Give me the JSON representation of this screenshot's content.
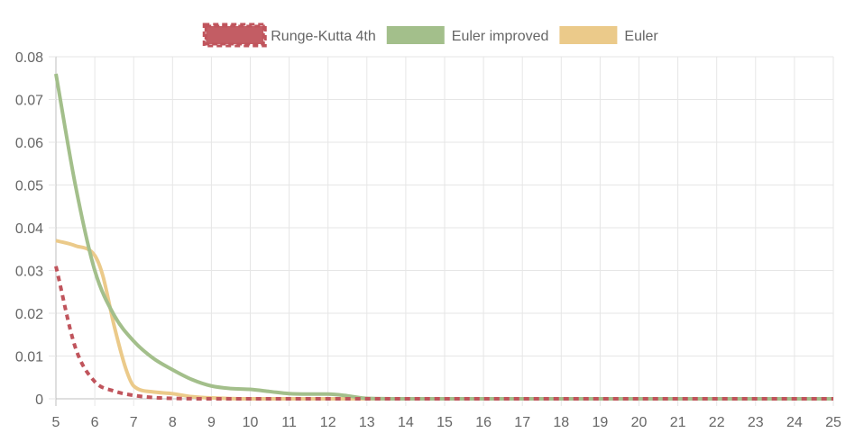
{
  "chart_data": {
    "type": "line",
    "title": "",
    "xlabel": "",
    "ylabel": "",
    "x": [
      5,
      6,
      7,
      8,
      9,
      10,
      11,
      12,
      13,
      14,
      15,
      16,
      17,
      18,
      19,
      20,
      21,
      22,
      23,
      24,
      25
    ],
    "xlim": [
      5,
      25
    ],
    "ylim": [
      0,
      0.08
    ],
    "y_ticks": [
      "0",
      "0.01",
      "0.02",
      "0.03",
      "0.04",
      "0.05",
      "0.06",
      "0.07",
      "0.08"
    ],
    "x_ticks": [
      "5",
      "6",
      "7",
      "8",
      "9",
      "10",
      "11",
      "12",
      "13",
      "14",
      "15",
      "16",
      "17",
      "18",
      "19",
      "20",
      "21",
      "22",
      "23",
      "24",
      "25"
    ],
    "grid": true,
    "legend_position": "top-center",
    "series": [
      {
        "name": "Runge-Kutta 4th",
        "color": "#c0545c",
        "style": "dashed",
        "points": [
          [
            5,
            0.031
          ],
          [
            5.5,
            0.012
          ],
          [
            6,
            0.004
          ],
          [
            6.5,
            0.0018
          ],
          [
            7,
            0.0008
          ],
          [
            7.5,
            0.0003
          ],
          [
            8,
            0.0001
          ],
          [
            9,
            0
          ],
          [
            10,
            0
          ],
          [
            11,
            0
          ],
          [
            12,
            0
          ],
          [
            13,
            0
          ],
          [
            14,
            0
          ],
          [
            15,
            0
          ],
          [
            16,
            0
          ],
          [
            17,
            0
          ],
          [
            18,
            0
          ],
          [
            19,
            0
          ],
          [
            20,
            0
          ],
          [
            21,
            0
          ],
          [
            22,
            0
          ],
          [
            23,
            0
          ],
          [
            24,
            0
          ],
          [
            25,
            0
          ]
        ]
      },
      {
        "name": "Euler improved",
        "color": "#a3bf8b",
        "style": "solid",
        "points": [
          [
            5,
            0.076
          ],
          [
            5.5,
            0.05
          ],
          [
            6,
            0.03
          ],
          [
            6.5,
            0.0195
          ],
          [
            7,
            0.0135
          ],
          [
            7.5,
            0.0095
          ],
          [
            8,
            0.0068
          ],
          [
            8.5,
            0.0045
          ],
          [
            9,
            0.003
          ],
          [
            9.5,
            0.0024
          ],
          [
            10,
            0.0022
          ],
          [
            10.5,
            0.0017
          ],
          [
            11,
            0.0012
          ],
          [
            11.5,
            0.0011
          ],
          [
            12,
            0.0011
          ],
          [
            12.5,
            0.0007
          ],
          [
            13,
            0.0001
          ],
          [
            14,
            0
          ],
          [
            15,
            0
          ],
          [
            16,
            0
          ],
          [
            17,
            0
          ],
          [
            18,
            0
          ],
          [
            19,
            0
          ],
          [
            20,
            0
          ],
          [
            21,
            0
          ],
          [
            22,
            0
          ],
          [
            23,
            0
          ],
          [
            24,
            0
          ],
          [
            25,
            0
          ]
        ]
      },
      {
        "name": "Euler",
        "color": "#ebca8a",
        "style": "solid",
        "points": [
          [
            5,
            0.037
          ],
          [
            5.5,
            0.0358
          ],
          [
            6,
            0.0335
          ],
          [
            6.2,
            0.029
          ],
          [
            6.5,
            0.017
          ],
          [
            6.8,
            0.007
          ],
          [
            7,
            0.003
          ],
          [
            7.5,
            0.0016
          ],
          [
            8,
            0.0012
          ],
          [
            8.5,
            0.0005
          ],
          [
            9,
            0.0002
          ],
          [
            10,
            0
          ],
          [
            11,
            0
          ],
          [
            12,
            0
          ],
          [
            13,
            0
          ],
          [
            14,
            0
          ],
          [
            15,
            0
          ],
          [
            16,
            0
          ],
          [
            17,
            0
          ],
          [
            18,
            0
          ],
          [
            19,
            0
          ],
          [
            20,
            0
          ],
          [
            21,
            0
          ],
          [
            22,
            0
          ],
          [
            23,
            0
          ],
          [
            24,
            0
          ],
          [
            25,
            0
          ]
        ]
      }
    ]
  }
}
